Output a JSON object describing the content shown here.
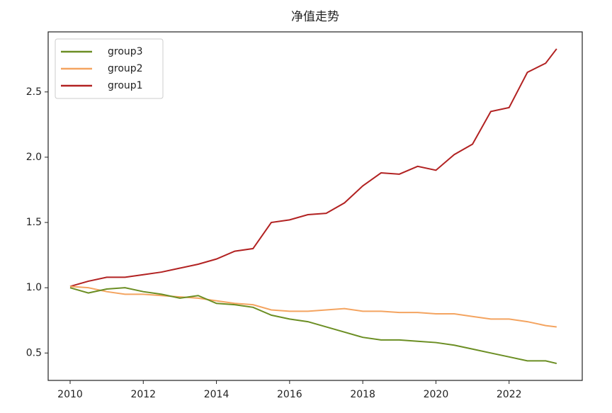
{
  "chart_data": {
    "type": "line",
    "title": "净值走势",
    "x": [
      2010,
      2010.5,
      2011,
      2011.5,
      2012,
      2012.5,
      2013,
      2013.5,
      2014,
      2014.5,
      2015,
      2015.5,
      2016,
      2016.5,
      2017,
      2017.5,
      2018,
      2018.5,
      2019,
      2019.5,
      2020,
      2020.5,
      2021,
      2021.5,
      2022,
      2022.5,
      2023,
      2023.3
    ],
    "series": [
      {
        "name": "group3",
        "color": "#6b8e23",
        "values": [
          1.0,
          0.96,
          0.99,
          1.0,
          0.97,
          0.95,
          0.92,
          0.94,
          0.88,
          0.87,
          0.85,
          0.79,
          0.76,
          0.74,
          0.7,
          0.66,
          0.62,
          0.6,
          0.6,
          0.59,
          0.58,
          0.56,
          0.53,
          0.5,
          0.47,
          0.44,
          0.44,
          0.42
        ]
      },
      {
        "name": "group2",
        "color": "#f4a460",
        "values": [
          1.01,
          1.0,
          0.97,
          0.95,
          0.95,
          0.94,
          0.93,
          0.92,
          0.9,
          0.88,
          0.87,
          0.83,
          0.82,
          0.82,
          0.83,
          0.84,
          0.82,
          0.82,
          0.81,
          0.81,
          0.8,
          0.8,
          0.78,
          0.76,
          0.76,
          0.74,
          0.71,
          0.7
        ]
      },
      {
        "name": "group1",
        "color": "#b22222",
        "values": [
          1.01,
          1.05,
          1.08,
          1.08,
          1.1,
          1.12,
          1.15,
          1.18,
          1.22,
          1.28,
          1.3,
          1.5,
          1.52,
          1.56,
          1.57,
          1.65,
          1.78,
          1.88,
          1.87,
          1.93,
          1.9,
          2.02,
          2.1,
          2.35,
          2.38,
          2.65,
          2.72,
          2.83
        ]
      }
    ],
    "xlim": [
      2009.4,
      2024.0
    ],
    "ylim": [
      0.29,
      2.96
    ],
    "xticks": [
      2010,
      2012,
      2014,
      2016,
      2018,
      2020,
      2022
    ],
    "yticks": [
      0.5,
      {
        "value": 1,
        "label": "1.0"
      },
      1.5,
      {
        "value": 2,
        "label": "2.0"
      },
      2.5
    ],
    "legend": "upper-left"
  }
}
